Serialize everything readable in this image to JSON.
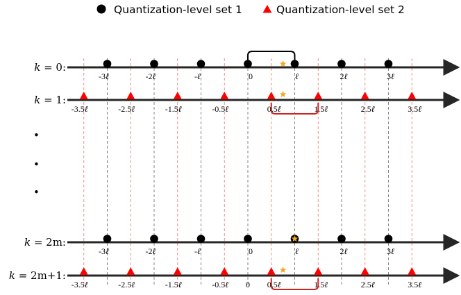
{
  "legend": {
    "set1": {
      "label": "Quantization-level set 1",
      "marker": "circle",
      "color": "#000000"
    },
    "set2": {
      "label": "Quantization-level set 2",
      "marker": "triangle",
      "color": "#ff0000"
    }
  },
  "colors": {
    "axis": "#262626",
    "dashed_gray": "#777777",
    "dashed_red": "#f08080",
    "bracket_set1": "#000000",
    "bracket_set2": "#d42020",
    "star": "#f5a623"
  },
  "ell_symbol": "ℓ",
  "set1_levels": [
    -3,
    -2,
    -1,
    0,
    1,
    2,
    3
  ],
  "set2_levels": [
    -3.5,
    -2.5,
    -1.5,
    -0.5,
    0.5,
    1.5,
    2.5,
    3.5
  ],
  "set1_tick_coefs": [
    "-3",
    "-2",
    "-",
    "",
    "",
    "2",
    "3"
  ],
  "set2_tick_coefs": [
    "-3.5",
    "-2.5",
    "-1.5",
    "-0.5",
    "0.5",
    "1.5",
    "2.5",
    "3.5"
  ],
  "zero_label": "0",
  "ellipsis": [
    "•",
    "•",
    "•"
  ],
  "rows": [
    {
      "k_var": "k",
      "k_rest": " = 0:",
      "set": 1,
      "star_value": 0.75,
      "star_on_level": false,
      "bracket": [
        0,
        1
      ],
      "bracket_side": "above"
    },
    {
      "k_var": "k",
      "k_rest": " = 1:",
      "set": 2,
      "star_value": 0.75,
      "star_on_level": false,
      "bracket": [
        0.5,
        1.5
      ],
      "bracket_side": "below"
    },
    {
      "k_var": "k",
      "k_rest": " = 2m:",
      "set": 1,
      "star_value": 1,
      "star_on_level": true,
      "bracket": null,
      "bracket_side": null
    },
    {
      "k_var": "k",
      "k_rest": " = 2m+1:",
      "set": 2,
      "star_value": 0.75,
      "star_on_level": false,
      "bracket": [
        0.5,
        1.5
      ],
      "bracket_side": "below",
      "show_zero": true
    }
  ]
}
